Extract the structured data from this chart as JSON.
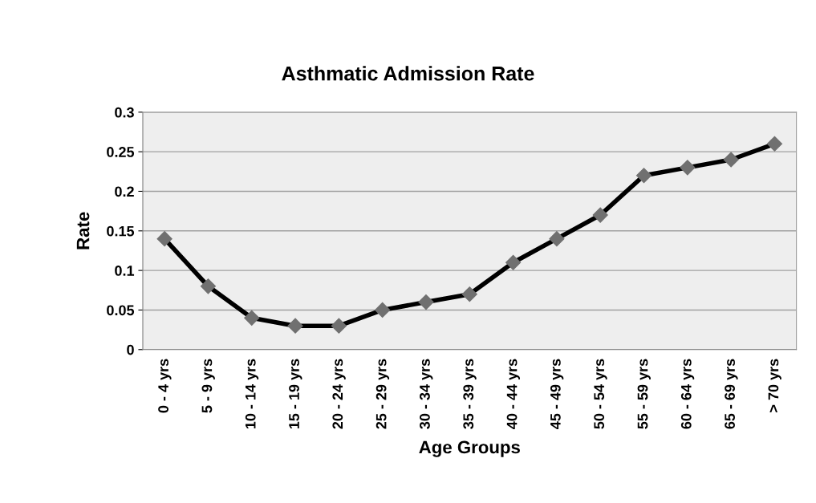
{
  "chart_data": {
    "type": "line",
    "title": "Asthmatic Admission Rate",
    "xlabel": "Age Groups",
    "ylabel": "Rate",
    "categories": [
      "0 - 4 yrs",
      "5 - 9 yrs",
      "10 - 14 yrs",
      "15 - 19 yrs",
      "20 - 24 yrs",
      "25 - 29 yrs",
      "30 - 34 yrs",
      "35 - 39 yrs",
      "40 - 44 yrs",
      "45 - 49 yrs",
      "50 - 54 yrs",
      "55 - 59 yrs",
      "60 - 64 yrs",
      "65 - 69 yrs",
      "> 70 yrs"
    ],
    "series": [
      {
        "color": "#000000",
        "values": [
          0.14,
          0.08,
          0.04,
          0.03,
          0.03,
          0.05,
          0.06,
          0.07,
          0.11,
          0.14,
          0.17,
          0.22,
          0.23,
          0.24,
          0.26
        ]
      }
    ],
    "marker": "diamond",
    "line_style": "solid",
    "grid": "y",
    "legend": false,
    "ylim": [
      0,
      0.3
    ],
    "yticks": [
      0,
      0.05,
      0.1,
      0.15,
      0.2,
      0.25,
      0.3
    ]
  }
}
